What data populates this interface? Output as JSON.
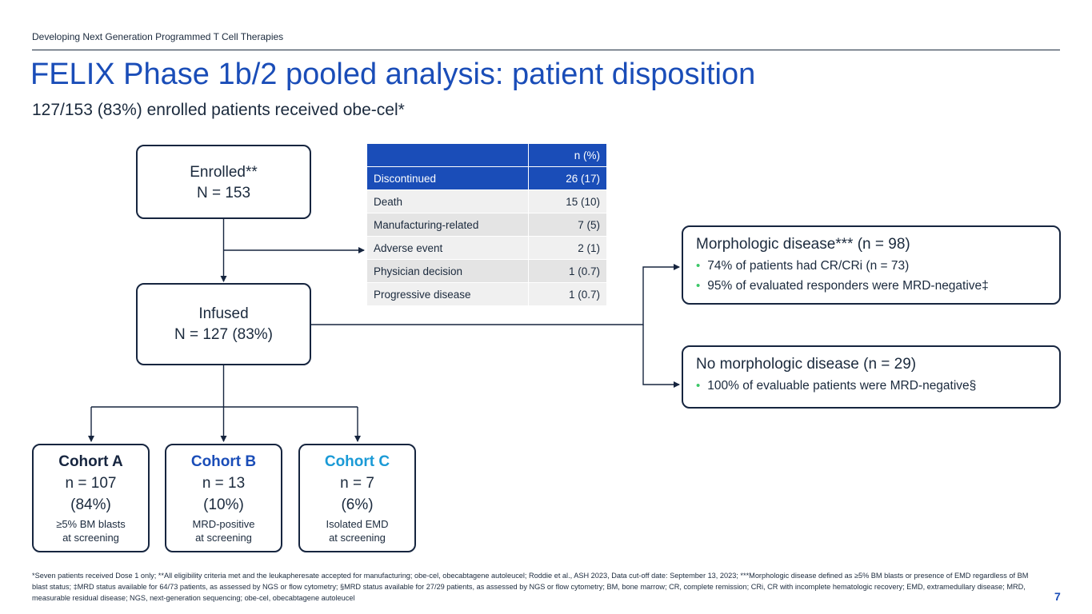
{
  "header": {
    "top_label": "Developing Next Generation Programmed T Cell Therapies",
    "title": "FELIX Phase 1b/2 pooled analysis: patient disposition",
    "subtitle": "127/153 (83%) enrolled patients received obe-cel*"
  },
  "flow": {
    "enrolled": {
      "line1": "Enrolled**",
      "line2": "N = 153"
    },
    "infused": {
      "line1": "Infused",
      "line2": "N = 127 (83%)"
    },
    "cohorts": [
      {
        "title": "Cohort A",
        "n": "n = 107",
        "pct": "(84%)",
        "desc1": "≥5% BM blasts",
        "desc2": "at screening",
        "color": "#16253f"
      },
      {
        "title": "Cohort B",
        "n": "n = 13",
        "pct": "(10%)",
        "desc1": "MRD-positive",
        "desc2": "at screening",
        "color": "#1a4db8"
      },
      {
        "title": "Cohort C",
        "n": "n = 7",
        "pct": "(6%)",
        "desc1": "Isolated EMD",
        "desc2": "at screening",
        "color": "#1a9ad6"
      }
    ]
  },
  "discontinued_table": {
    "header_col": "n (%)",
    "header_label": "Discontinued",
    "header_value": "26 (17)",
    "rows": [
      {
        "label": "Death",
        "value": "15 (10)"
      },
      {
        "label": "Manufacturing-related",
        "value": "7 (5)"
      },
      {
        "label": "Adverse event",
        "value": "2 (1)"
      },
      {
        "label": "Physician decision",
        "value": "1 (0.7)"
      },
      {
        "label": "Progressive disease",
        "value": "1 (0.7)"
      }
    ]
  },
  "outcomes": {
    "morphologic": {
      "title": "Morphologic disease*** (n = 98)",
      "bullets": [
        "74% of patients had CR/CRi (n = 73)",
        "95% of evaluated responders were MRD-negative‡"
      ]
    },
    "no_morphologic": {
      "title": "No morphologic disease (n = 29)",
      "bullets": [
        "100% of evaluable patients were MRD-negative§"
      ]
    }
  },
  "colors": {
    "accent": "#1a4db8",
    "bullet": "#3cc768",
    "dark": "#16253f",
    "cyan": "#1a9ad6"
  },
  "footnote": "*Seven patients received Dose 1 only; **All eligibility criteria met and the leukapheresate accepted for manufacturing; obe-cel, obecabtagene autoleucel; Roddie et al., ASH 2023, Data cut-off date: September 13, 2023; ***Morphologic disease defined as ≥5% BM blasts or presence of EMD regardless of BM blast status; ‡MRD status available for 64/73 patients, as assessed by NGS or flow cytometry; §MRD status available for 27/29 patients, as assessed by NGS or flow cytometry; BM, bone marrow; CR, complete remission; CRi, CR with incomplete hematologic recovery; EMD, extramedullary disease; MRD, measurable residual disease; NGS, next-generation sequencing; obe-cel, obecabtagene autoleucel",
  "page_number": "7"
}
